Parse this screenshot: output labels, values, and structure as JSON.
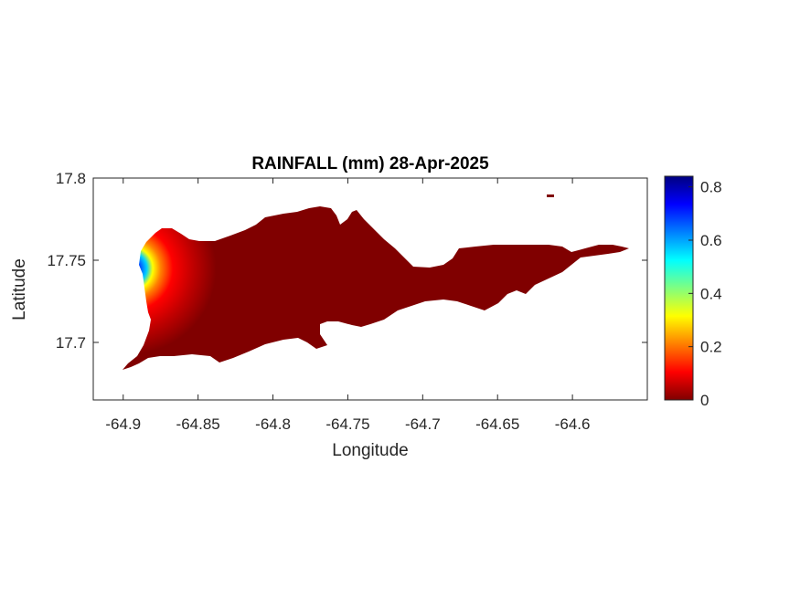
{
  "chart_data": {
    "type": "heatmap",
    "title": "RAINFALL (mm) 28-Apr-2025",
    "xlabel": "Longitude",
    "ylabel": "Latitude",
    "xlim": [
      -64.92,
      -64.55
    ],
    "ylim": [
      17.665,
      17.8
    ],
    "x_ticks": [
      -64.9,
      -64.85,
      -64.8,
      -64.75,
      -64.7,
      -64.65,
      -64.6
    ],
    "x_tick_labels": [
      "-64.9",
      "-64.85",
      "-64.8",
      "-64.75",
      "-64.7",
      "-64.65",
      "-64.6"
    ],
    "y_ticks": [
      17.7,
      17.75,
      17.8
    ],
    "y_tick_labels": [
      "17.7",
      "17.75",
      "17.8"
    ],
    "colorbar": {
      "colormap": "jet",
      "range": [
        0,
        0.84
      ],
      "ticks": [
        0,
        0.2,
        0.4,
        0.6,
        0.8
      ],
      "tick_labels": [
        "0",
        "0.2",
        "0.4",
        "0.6",
        "0.8"
      ]
    },
    "max_rainfall_location": [
      -64.895,
      17.745
    ],
    "max_rainfall_value": 0.84,
    "background_value": 0,
    "grid": false
  }
}
